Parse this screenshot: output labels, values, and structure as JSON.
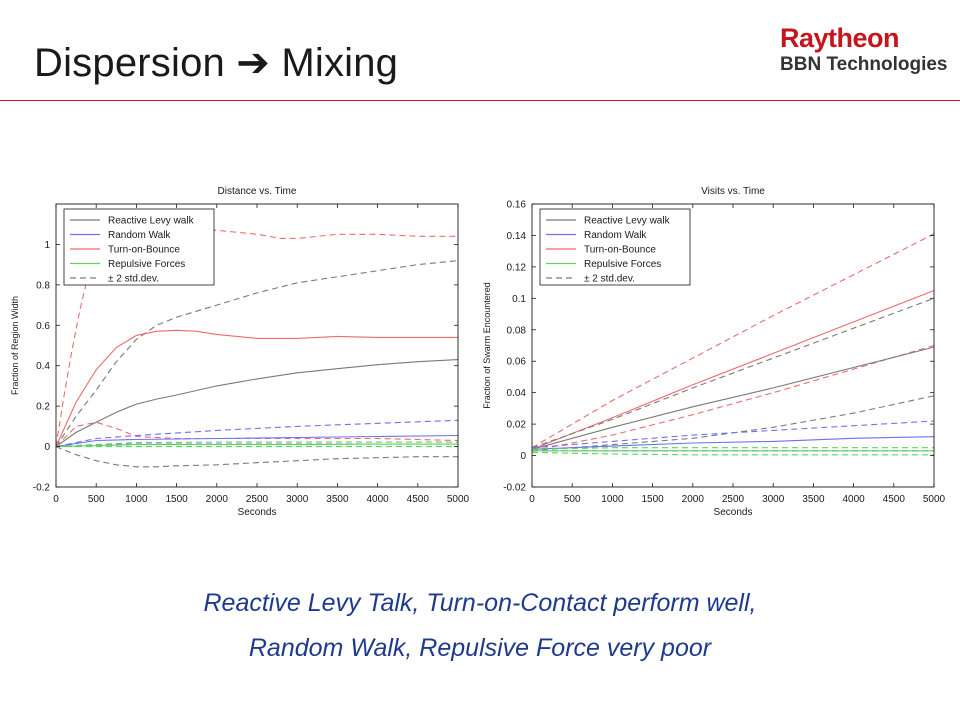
{
  "slide": {
    "title_left": "Dispersion",
    "title_arrow": "➔",
    "title_right": "Mixing",
    "logo_line1": "Raytheon",
    "logo_line2": "BBN Technologies",
    "caption_line1": "Reactive Levy Talk, Turn-on-Contact perform well,",
    "caption_line2": "Random Walk, Repulsive Force very poor",
    "accent_color": "#c4161c",
    "caption_color": "#1f3a8c"
  },
  "chart_data": [
    {
      "type": "line",
      "title": "Distance vs. Time",
      "xlabel": "Seconds",
      "ylabel": "Fraction of Region Width",
      "xlim": [
        0,
        5000
      ],
      "ylim": [
        -0.2,
        1.2
      ],
      "xticks": [
        0,
        500,
        1000,
        1500,
        2000,
        2500,
        3000,
        3500,
        4000,
        4500,
        5000
      ],
      "yticks": [
        -0.2,
        0,
        0.2,
        0.4,
        0.6,
        0.8,
        1
      ],
      "ytick_labels": [
        "-0.2",
        "0",
        "0.2",
        "0.4",
        "0.6",
        "0.8",
        "1"
      ],
      "grid": false,
      "legend_position": "top-left",
      "legend": [
        {
          "label": "Reactive Levy walk",
          "color": "#7a7a7a",
          "dash": false
        },
        {
          "label": "Random Walk",
          "color": "#6f6ff5",
          "dash": false
        },
        {
          "label": "Turn-on-Bounce",
          "color": "#f06a6a",
          "dash": false
        },
        {
          "label": "Repulsive Forces",
          "color": "#5fd35f",
          "dash": false
        },
        {
          "label": "± 2 std.dev.",
          "color": "#7a7a7a",
          "dash": true
        }
      ],
      "series": [
        {
          "name": "Reactive Levy walk",
          "color": "#7a7a7a",
          "dash": false,
          "x": [
            0,
            250,
            500,
            750,
            1000,
            1250,
            1500,
            2000,
            2500,
            3000,
            3500,
            4000,
            4500,
            5000
          ],
          "y": [
            0,
            0.07,
            0.12,
            0.17,
            0.21,
            0.235,
            0.255,
            0.3,
            0.335,
            0.365,
            0.385,
            0.405,
            0.42,
            0.43
          ]
        },
        {
          "name": "± 2 std.dev.",
          "color": "#7a7a7a",
          "dash": true,
          "x": [
            0,
            250,
            500,
            750,
            1000,
            1250,
            1500,
            2000,
            2500,
            3000,
            3500,
            4000,
            4500,
            5000
          ],
          "y": [
            0,
            0.15,
            0.28,
            0.42,
            0.53,
            0.6,
            0.64,
            0.7,
            0.76,
            0.81,
            0.84,
            0.87,
            0.9,
            0.92
          ]
        },
        {
          "name": "± 2 std.dev.",
          "color": "#7a7a7a",
          "dash": true,
          "x": [
            0,
            250,
            500,
            750,
            1000,
            1250,
            1500,
            2000,
            2500,
            3000,
            3500,
            4000,
            4500,
            5000
          ],
          "y": [
            0,
            -0.04,
            -0.07,
            -0.09,
            -0.1,
            -0.1,
            -0.095,
            -0.09,
            -0.08,
            -0.07,
            -0.06,
            -0.055,
            -0.05,
            -0.05
          ]
        },
        {
          "name": "Turn-on-Bounce",
          "color": "#f06a6a",
          "dash": false,
          "x": [
            0,
            250,
            500,
            750,
            1000,
            1250,
            1500,
            1750,
            2000,
            2500,
            3000,
            3500,
            4000,
            4500,
            5000
          ],
          "y": [
            0,
            0.22,
            0.38,
            0.49,
            0.55,
            0.57,
            0.575,
            0.57,
            0.555,
            0.535,
            0.535,
            0.545,
            0.54,
            0.54,
            0.54
          ]
        },
        {
          "name": "± 2 std.dev.",
          "color": "#f06a6a",
          "dash": true,
          "x": [
            0,
            100,
            200,
            300,
            400,
            500,
            600,
            700,
            800,
            1000,
            1200,
            1500,
            2000,
            2500,
            2800,
            3000,
            3500,
            4000,
            4500,
            5000
          ],
          "y": [
            0,
            0.25,
            0.48,
            0.68,
            0.85,
            0.97,
            1.05,
            1.1,
            1.11,
            1.1,
            1.09,
            1.08,
            1.07,
            1.05,
            1.03,
            1.03,
            1.05,
            1.05,
            1.04,
            1.04
          ]
        },
        {
          "name": "± 2 std.dev.",
          "color": "#f06a6a",
          "dash": true,
          "x": [
            0,
            250,
            500,
            750,
            1000,
            1500,
            2000,
            2500,
            3000,
            3500,
            4000,
            4500,
            5000
          ],
          "y": [
            0,
            0.1,
            0.12,
            0.09,
            0.05,
            0.04,
            0.04,
            0.04,
            0.04,
            0.04,
            0.04,
            0.035,
            0.03
          ]
        },
        {
          "name": "Random Walk",
          "color": "#6f6ff5",
          "dash": false,
          "x": [
            0,
            500,
            1000,
            2000,
            3000,
            4000,
            5000
          ],
          "y": [
            0,
            0.03,
            0.035,
            0.04,
            0.045,
            0.05,
            0.055
          ]
        },
        {
          "name": "± 2 std.dev.",
          "color": "#6f6ff5",
          "dash": true,
          "x": [
            0,
            500,
            1000,
            2000,
            3000,
            4000,
            5000
          ],
          "y": [
            0,
            0.04,
            0.055,
            0.08,
            0.1,
            0.115,
            0.13
          ]
        },
        {
          "name": "± 2 std.dev.",
          "color": "#6f6ff5",
          "dash": true,
          "x": [
            0,
            500,
            1000,
            2000,
            3000,
            4000,
            5000
          ],
          "y": [
            0,
            0.01,
            0.012,
            0.012,
            0.012,
            0.012,
            0.012
          ]
        },
        {
          "name": "Repulsive Forces",
          "color": "#5fd35f",
          "dash": false,
          "x": [
            0,
            1000,
            2000,
            3000,
            4000,
            5000
          ],
          "y": [
            0,
            0.01,
            0.01,
            0.01,
            0.012,
            0.012
          ]
        },
        {
          "name": "± 2 std.dev.",
          "color": "#5fd35f",
          "dash": true,
          "x": [
            0,
            1000,
            2000,
            3000,
            4000,
            5000
          ],
          "y": [
            0,
            0.02,
            0.022,
            0.022,
            0.022,
            0.022
          ]
        },
        {
          "name": "± 2 std.dev.",
          "color": "#5fd35f",
          "dash": true,
          "x": [
            0,
            1000,
            2000,
            3000,
            4000,
            5000
          ],
          "y": [
            0,
            0.0,
            0.0,
            0.0,
            0.0,
            0.0
          ]
        }
      ]
    },
    {
      "type": "line",
      "title": "Visits vs. Time",
      "xlabel": "Seconds",
      "ylabel": "Fraction of Swarm Encountered",
      "xlim": [
        0,
        5000
      ],
      "ylim": [
        -0.02,
        0.16
      ],
      "xticks": [
        0,
        500,
        1000,
        1500,
        2000,
        2500,
        3000,
        3500,
        4000,
        4500,
        5000
      ],
      "yticks": [
        -0.02,
        0,
        0.02,
        0.04,
        0.06,
        0.08,
        0.1,
        0.12,
        0.14,
        0.16
      ],
      "ytick_labels": [
        "-0.02",
        "0",
        "0.02",
        "0.04",
        "0.06",
        "0.08",
        "0.1",
        "0.12",
        "0.14",
        "0.16"
      ],
      "grid": false,
      "legend_position": "top-left",
      "legend": [
        {
          "label": "Reactive Levy walk",
          "color": "#7a7a7a",
          "dash": false
        },
        {
          "label": "Random Walk",
          "color": "#6f6ff5",
          "dash": false
        },
        {
          "label": "Turn-on-Bounce",
          "color": "#f06a6a",
          "dash": false
        },
        {
          "label": "Repulsive Forces",
          "color": "#5fd35f",
          "dash": false
        },
        {
          "label": "± 2 std.dev.",
          "color": "#7a7a7a",
          "dash": true
        }
      ],
      "series": [
        {
          "name": "Turn-on-Bounce",
          "color": "#f06a6a",
          "dash": false,
          "x": [
            0,
            1000,
            2000,
            3000,
            4000,
            5000
          ],
          "y": [
            0.004,
            0.024,
            0.045,
            0.065,
            0.085,
            0.105
          ]
        },
        {
          "name": "± 2 std.dev.",
          "color": "#f06a6a",
          "dash": true,
          "x": [
            0,
            1000,
            2000,
            3000,
            4000,
            5000
          ],
          "y": [
            0.005,
            0.035,
            0.062,
            0.089,
            0.115,
            0.141
          ]
        },
        {
          "name": "± 2 std.dev.",
          "color": "#f06a6a",
          "dash": true,
          "x": [
            0,
            1000,
            2000,
            3000,
            4000,
            5000
          ],
          "y": [
            0.003,
            0.013,
            0.026,
            0.04,
            0.055,
            0.07
          ]
        },
        {
          "name": "Reactive Levy walk",
          "color": "#7a7a7a",
          "dash": false,
          "x": [
            0,
            1000,
            2000,
            3000,
            4000,
            5000
          ],
          "y": [
            0.004,
            0.018,
            0.031,
            0.043,
            0.056,
            0.069
          ]
        },
        {
          "name": "± 2 std.dev.",
          "color": "#7a7a7a",
          "dash": true,
          "x": [
            0,
            1000,
            2000,
            3000,
            4000,
            5000
          ],
          "y": [
            0.005,
            0.023,
            0.043,
            0.062,
            0.081,
            0.1
          ]
        },
        {
          "name": "± 2 std.dev.",
          "color": "#7a7a7a",
          "dash": true,
          "x": [
            0,
            1000,
            2000,
            3000,
            4000,
            5000
          ],
          "y": [
            0.003,
            0.007,
            0.011,
            0.018,
            0.027,
            0.038
          ]
        },
        {
          "name": "Random Walk",
          "color": "#6f6ff5",
          "dash": false,
          "x": [
            0,
            1000,
            2000,
            3000,
            4000,
            5000
          ],
          "y": [
            0.004,
            0.006,
            0.008,
            0.009,
            0.011,
            0.012
          ]
        },
        {
          "name": "± 2 std.dev.",
          "color": "#6f6ff5",
          "dash": true,
          "x": [
            0,
            1000,
            2000,
            3000,
            4000,
            5000
          ],
          "y": [
            0.005,
            0.009,
            0.013,
            0.016,
            0.019,
            0.022
          ]
        },
        {
          "name": "± 2 std.dev.",
          "color": "#6f6ff5",
          "dash": true,
          "x": [
            0,
            1000,
            2000,
            3000,
            4000,
            5000
          ],
          "y": [
            0.003,
            0.003,
            0.003,
            0.003,
            0.003,
            0.003
          ]
        },
        {
          "name": "Repulsive Forces",
          "color": "#5fd35f",
          "dash": false,
          "x": [
            0,
            1000,
            2000,
            3000,
            4000,
            5000
          ],
          "y": [
            0.003,
            0.003,
            0.003,
            0.003,
            0.003,
            0.003
          ]
        },
        {
          "name": "± 2 std.dev.",
          "color": "#5fd35f",
          "dash": true,
          "x": [
            0,
            1000,
            2000,
            3000,
            4000,
            5000
          ],
          "y": [
            0.004,
            0.005,
            0.005,
            0.005,
            0.005,
            0.005
          ]
        },
        {
          "name": "± 2 std.dev.",
          "color": "#5fd35f",
          "dash": true,
          "x": [
            0,
            1000,
            2000,
            3000,
            4000,
            5000
          ],
          "y": [
            0.002,
            0.001,
            0.0005,
            0.0005,
            0.0005,
            0.0005
          ]
        }
      ]
    }
  ]
}
